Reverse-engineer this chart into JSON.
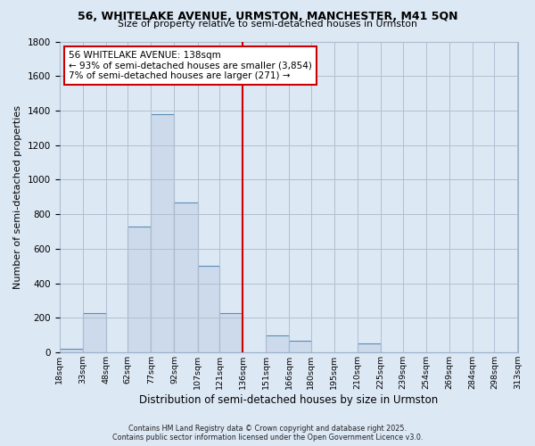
{
  "title_line1": "56, WHITELAKE AVENUE, URMSTON, MANCHESTER, M41 5QN",
  "title_line2": "Size of property relative to semi-detached houses in Urmston",
  "xlabel": "Distribution of semi-detached houses by size in Urmston",
  "ylabel": "Number of semi-detached properties",
  "annotation_title": "56 WHITELAKE AVENUE: 138sqm",
  "annotation_line1": "← 93% of semi-detached houses are smaller (3,854)",
  "annotation_line2": "7% of semi-detached houses are larger (271) →",
  "footer1": "Contains HM Land Registry data © Crown copyright and database right 2025.",
  "footer2": "Contains public sector information licensed under the Open Government Licence v3.0.",
  "bar_color": "#cddaeb",
  "bar_edge_color": "#5b8db8",
  "property_line_color": "#cc0000",
  "annotation_box_edge": "#cc0000",
  "annotation_bg": "white",
  "background_color": "#dde8f5",
  "bin_edges": [
    18,
    33,
    48,
    62,
    77,
    92,
    107,
    121,
    136,
    151,
    166,
    180,
    195,
    210,
    225,
    239,
    254,
    269,
    284,
    298,
    313
  ],
  "bin_labels": [
    "18sqm",
    "33sqm",
    "48sqm",
    "62sqm",
    "77sqm",
    "92sqm",
    "107sqm",
    "121sqm",
    "136sqm",
    "151sqm",
    "166sqm",
    "180sqm",
    "195sqm",
    "210sqm",
    "225sqm",
    "239sqm",
    "254sqm",
    "269sqm",
    "284sqm",
    "298sqm",
    "313sqm"
  ],
  "counts": [
    20,
    230,
    0,
    730,
    1380,
    870,
    500,
    230,
    0,
    100,
    70,
    0,
    0,
    50,
    0,
    0,
    0,
    0,
    0,
    0
  ],
  "property_bin_index": 8,
  "ylim": [
    0,
    1800
  ],
  "yticks": [
    0,
    200,
    400,
    600,
    800,
    1000,
    1200,
    1400,
    1600,
    1800
  ]
}
